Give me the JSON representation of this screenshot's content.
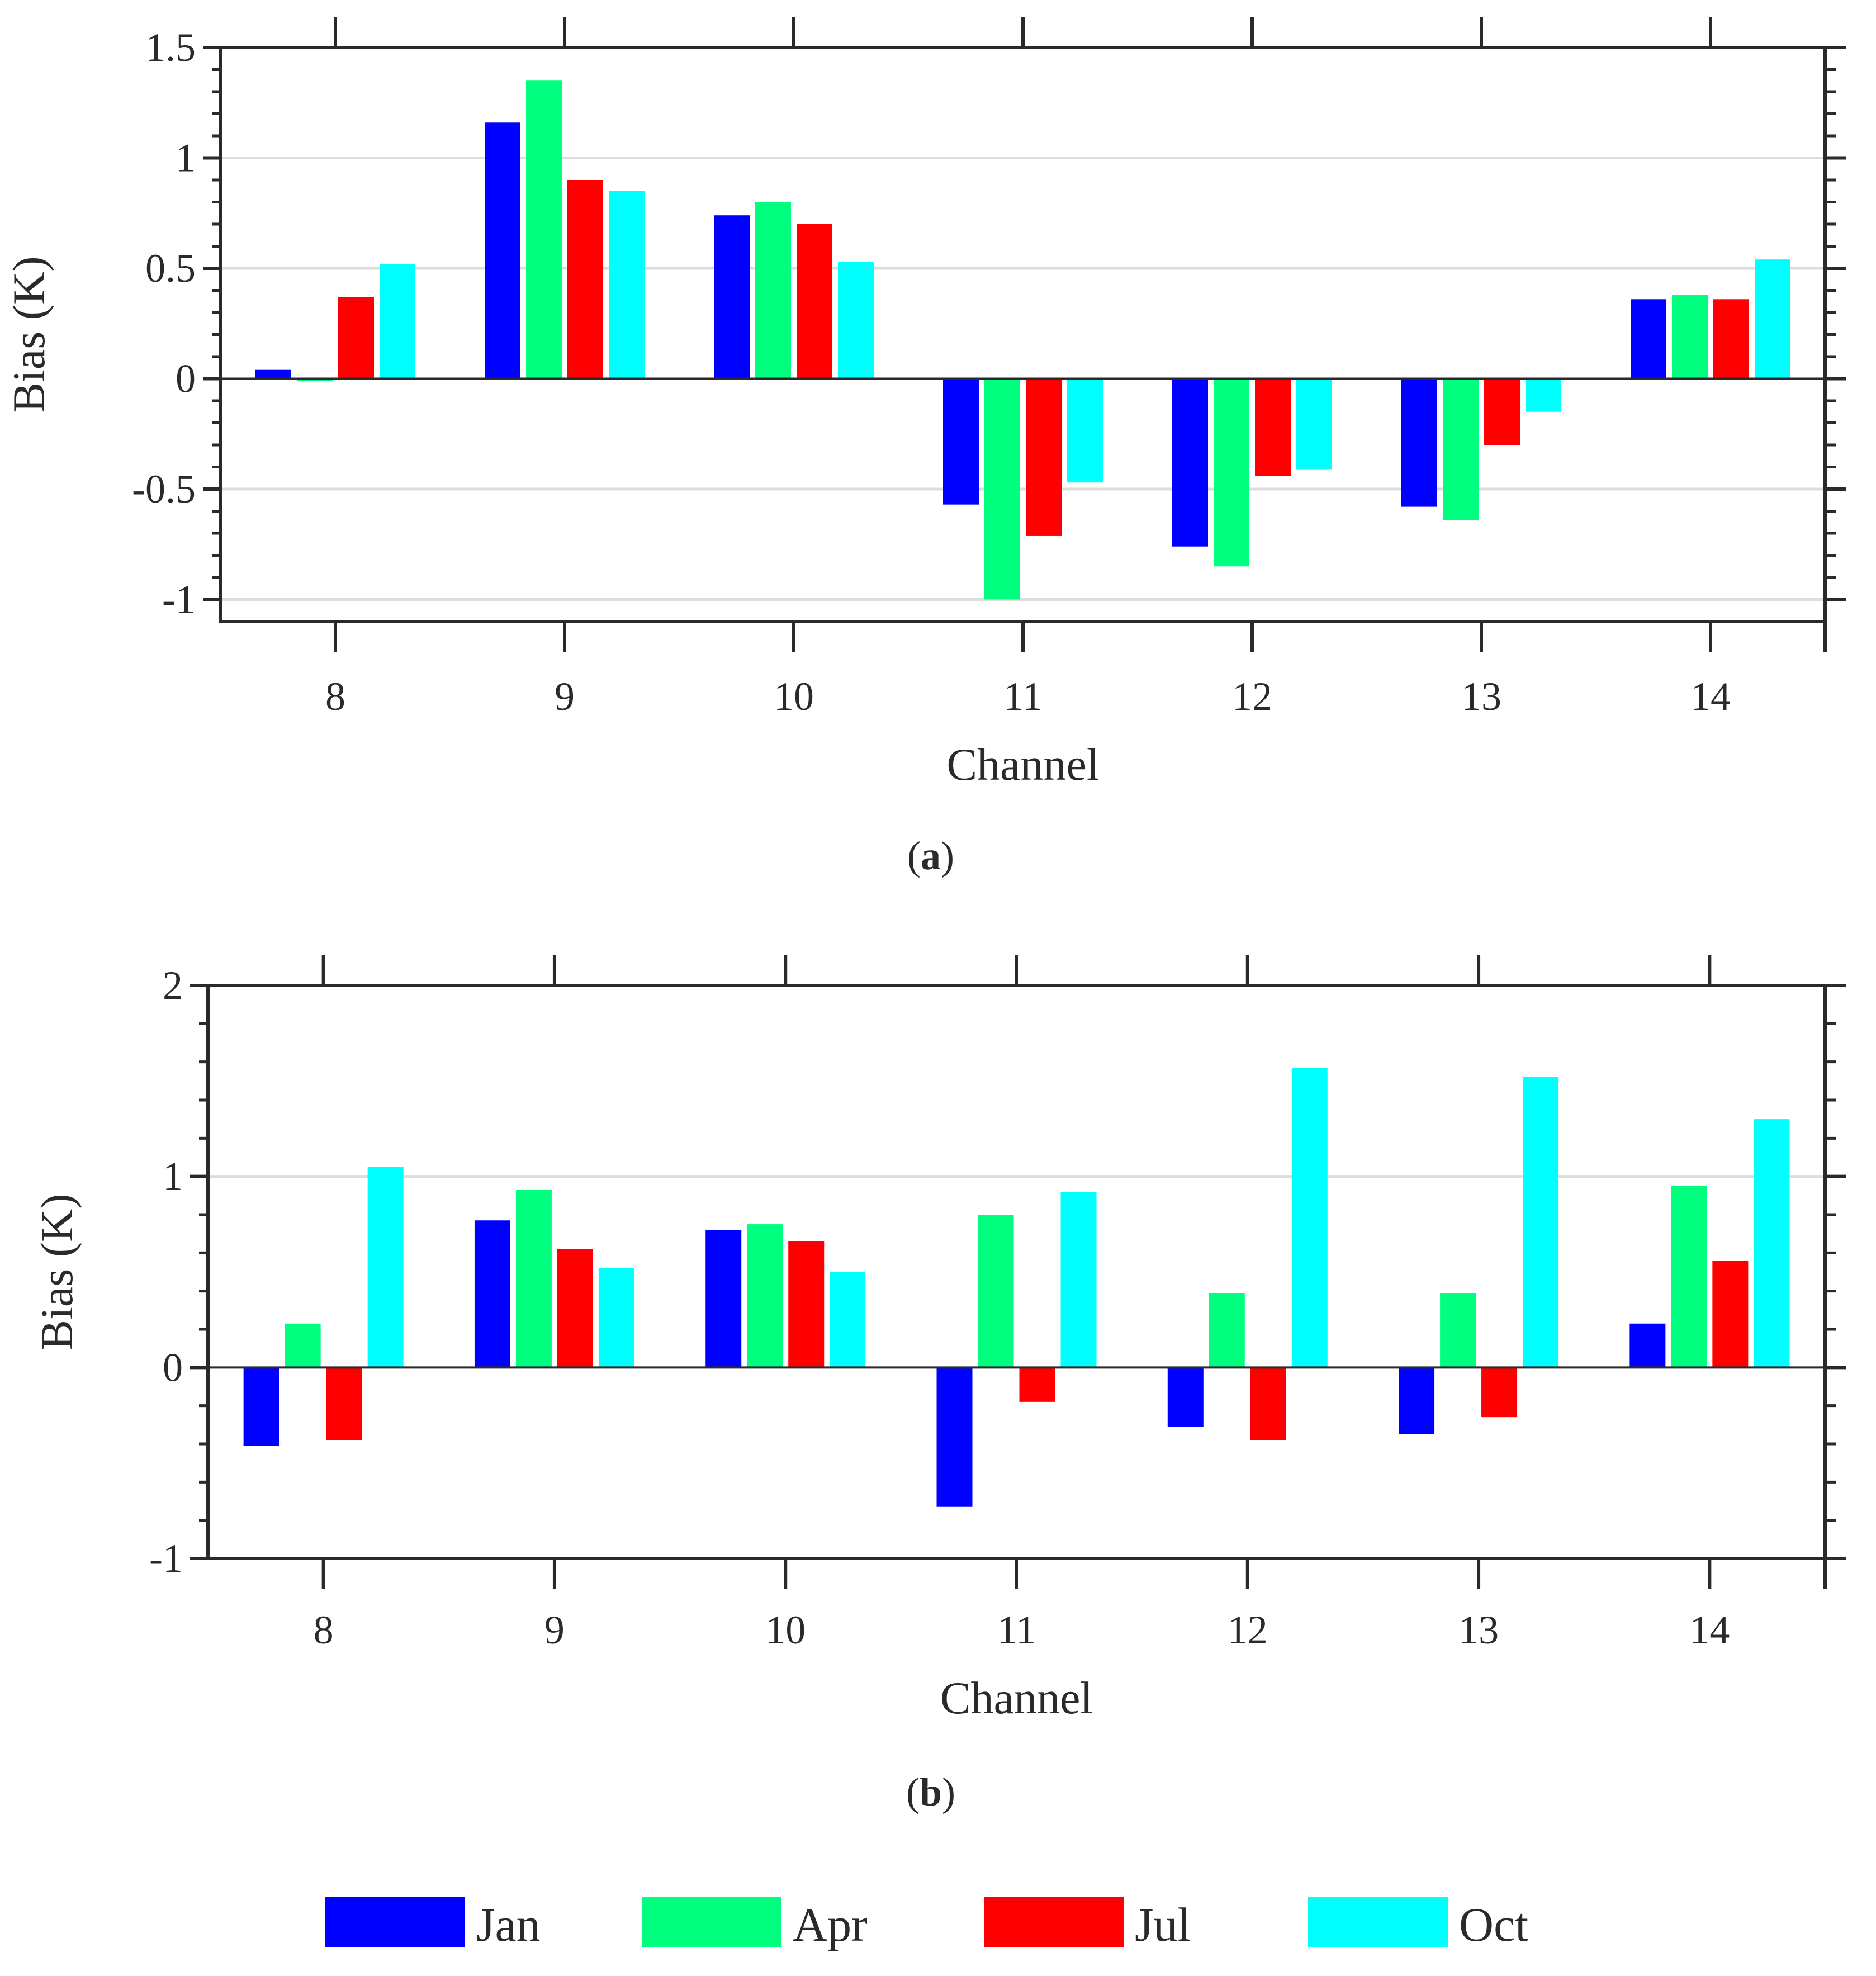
{
  "chart_data": [
    {
      "type": "bar",
      "panel": "(a)",
      "panel_letter": "a",
      "xlabel": "Channel",
      "ylabel": "Bias (K)",
      "categories": [
        "8",
        "9",
        "10",
        "11",
        "12",
        "13",
        "14"
      ],
      "ylim": [
        -1.1,
        1.5
      ],
      "yticks": [
        -1,
        -0.5,
        0,
        0.5,
        1,
        1.5
      ],
      "ytick_labels": [
        "-1",
        "-0.5",
        "0",
        "0.5",
        "1",
        "1.5"
      ],
      "grid": true,
      "series": [
        {
          "name": "Jan",
          "values": [
            0.04,
            1.16,
            0.74,
            -0.57,
            -0.76,
            -0.58,
            0.36
          ]
        },
        {
          "name": "Apr",
          "values": [
            -0.01,
            1.35,
            0.8,
            -1.0,
            -0.85,
            -0.64,
            0.38
          ]
        },
        {
          "name": "Jul",
          "values": [
            0.37,
            0.9,
            0.7,
            -0.71,
            -0.44,
            -0.3,
            0.36
          ]
        },
        {
          "name": "Oct",
          "values": [
            0.52,
            0.85,
            0.53,
            -0.47,
            -0.41,
            -0.15,
            0.54
          ]
        }
      ]
    },
    {
      "type": "bar",
      "panel": "(b)",
      "panel_letter": "b",
      "xlabel": "Channel",
      "ylabel": "Bias (K)",
      "categories": [
        "8",
        "9",
        "10",
        "11",
        "12",
        "13",
        "14"
      ],
      "ylim": [
        -1,
        2
      ],
      "yticks": [
        -1,
        0,
        1,
        2
      ],
      "ytick_labels": [
        "-1",
        "0",
        "1",
        "2"
      ],
      "grid": true,
      "series": [
        {
          "name": "Jan",
          "values": [
            -0.41,
            0.77,
            0.72,
            -0.73,
            -0.31,
            -0.35,
            0.23
          ]
        },
        {
          "name": "Apr",
          "values": [
            0.23,
            0.93,
            0.75,
            0.8,
            0.39,
            0.39,
            0.95
          ]
        },
        {
          "name": "Jul",
          "values": [
            -0.38,
            0.62,
            0.66,
            -0.18,
            -0.38,
            -0.26,
            0.56
          ]
        },
        {
          "name": "Oct",
          "values": [
            1.05,
            0.52,
            0.5,
            0.92,
            1.57,
            1.52,
            1.3
          ]
        }
      ]
    }
  ],
  "legend": {
    "placement": "bottom",
    "entries": [
      {
        "name": "Jan",
        "color": "#0000ff"
      },
      {
        "name": "Apr",
        "color": "#00ff7f"
      },
      {
        "name": "Jul",
        "color": "#ff0000"
      },
      {
        "name": "Oct",
        "color": "#00ffff"
      }
    ]
  },
  "colors": {
    "Jan": "#0000ff",
    "Apr": "#00ff7f",
    "Jul": "#ff0000",
    "Oct": "#00ffff",
    "axis": "#2a2a2a",
    "grid": "#dddddd"
  }
}
